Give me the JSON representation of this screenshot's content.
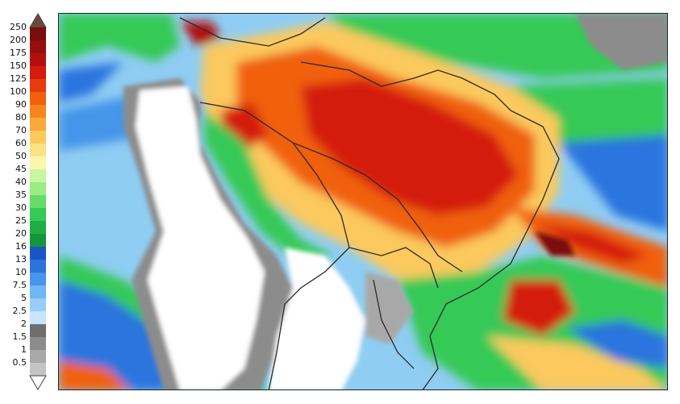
{
  "legend": {
    "labels": [
      "250",
      "200",
      "175",
      "150",
      "125",
      "100",
      "90",
      "80",
      "70",
      "60",
      "50",
      "45",
      "40",
      "35",
      "30",
      "25",
      "20",
      "16",
      "13",
      "10",
      "7.5",
      "5",
      "2.5",
      "2",
      "1.5",
      "1",
      "0.5"
    ],
    "colors": [
      "#7a0c0c",
      "#960f0f",
      "#b21010",
      "#d41b0f",
      "#e63a0f",
      "#f0600f",
      "#f5861d",
      "#f8a93a",
      "#fbc95d",
      "#fbe384",
      "#fbf6ad",
      "#c8f5a0",
      "#9aec84",
      "#64dc6a",
      "#35c957",
      "#1fae43",
      "#14953a",
      "#1a55c8",
      "#2b74de",
      "#4595ea",
      "#6fb6f4",
      "#99ccf8",
      "#c6e4fb",
      "#6e6e6e",
      "#8c8c8c",
      "#a8a8a8",
      "#c4c4c4"
    ],
    "cap_top_color": "#6b4a3e",
    "cap_bottom_color": "#ffffff"
  },
  "map": {
    "ocean_color": "#8fcdf3",
    "dry_color": "#ffffff",
    "border_color": "#2a2a2a"
  }
}
